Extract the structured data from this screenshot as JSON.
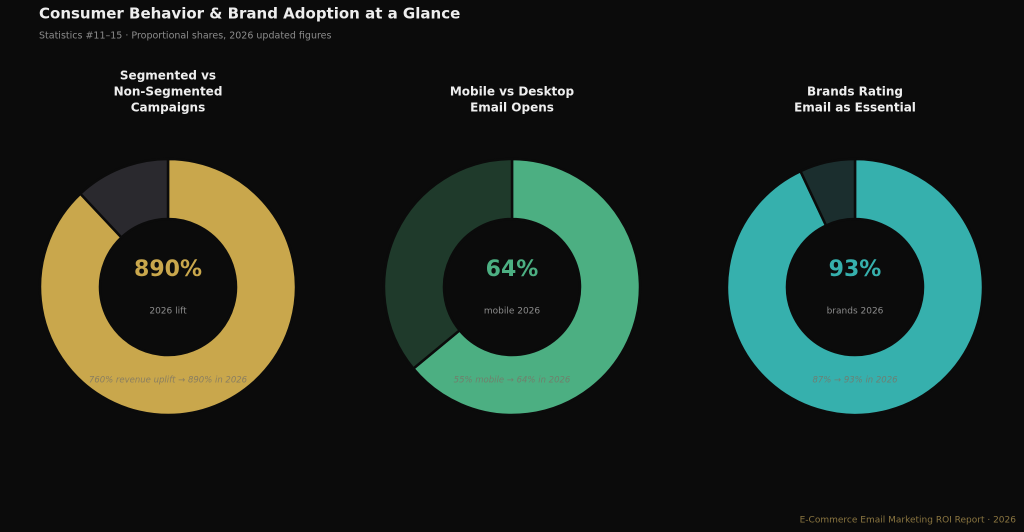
{
  "title": "Consumer Behavior & Brand Adoption at a Glance",
  "subtitle": "Statistics #11–15  ·  Proportional shares, 2026 updated figures",
  "footer": "E-Commerce Email Marketing ROI Report · 2026",
  "chart_data": [
    {
      "type": "donut",
      "title": [
        "Segmented vs",
        "Non-Segmented",
        "Campaigns"
      ],
      "values": [
        88,
        12
      ],
      "colors": [
        "#c9a74c",
        "#2a292e"
      ],
      "center_label": "890%",
      "center_sublabel": "2026 lift",
      "annotation": "760% revenue uplift → 890% in 2026"
    },
    {
      "type": "donut",
      "title": [
        "Mobile vs Desktop",
        "Email Opens"
      ],
      "values": [
        64,
        36
      ],
      "colors": [
        "#4caf82",
        "#1f3a2b"
      ],
      "center_label": "64%",
      "center_sublabel": "mobile 2026",
      "annotation": "55% mobile → 64% in 2026"
    },
    {
      "type": "donut",
      "title": [
        "Brands Rating",
        "Email as Essential"
      ],
      "values": [
        93,
        7
      ],
      "colors": [
        "#36b0ad",
        "#1b2e2e"
      ],
      "center_label": "93%",
      "center_sublabel": "brands 2026",
      "annotation": "87% → 93% in 2026"
    }
  ]
}
